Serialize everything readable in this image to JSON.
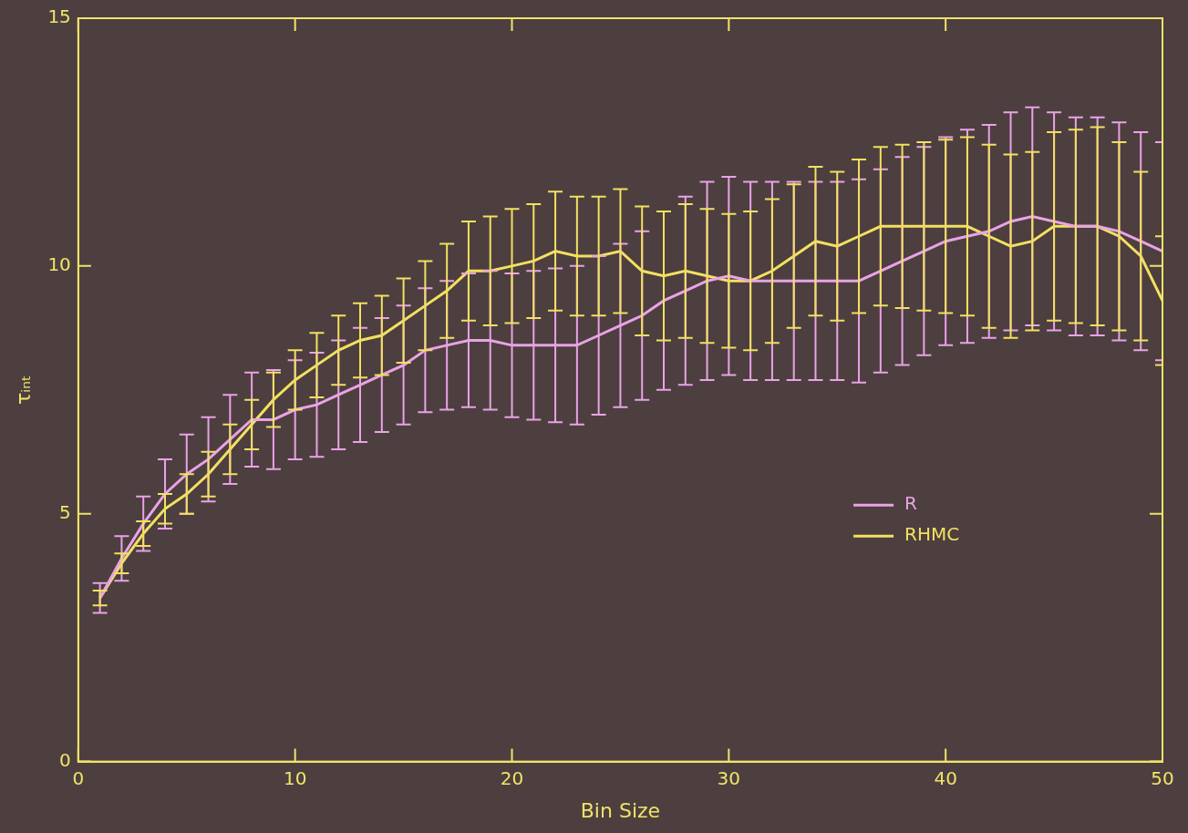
{
  "chart_data": {
    "type": "line",
    "x_label": "Bin Size",
    "y_label": "τᵢₙₜ",
    "x": [
      1,
      2,
      3,
      4,
      5,
      6,
      7,
      8,
      9,
      10,
      11,
      12,
      13,
      14,
      15,
      16,
      17,
      18,
      19,
      20,
      21,
      22,
      23,
      24,
      25,
      26,
      27,
      28,
      29,
      30,
      31,
      32,
      33,
      34,
      35,
      36,
      37,
      38,
      39,
      40,
      41,
      42,
      43,
      44,
      45,
      46,
      47,
      48,
      49,
      50
    ],
    "xlim": [
      0,
      50
    ],
    "xticks": [
      0,
      10,
      20,
      30,
      40,
      50
    ],
    "ylim": [
      0,
      15
    ],
    "yticks": [
      0,
      5,
      10,
      15
    ],
    "grid": false,
    "legend": "lower right",
    "series": [
      {
        "name": "R",
        "color": "#e9a3e6",
        "values": [
          3.3,
          4.1,
          4.8,
          5.4,
          5.8,
          6.1,
          6.5,
          6.9,
          6.9,
          7.1,
          7.2,
          7.4,
          7.6,
          7.8,
          8.0,
          8.3,
          8.4,
          8.5,
          8.5,
          8.4,
          8.4,
          8.4,
          8.4,
          8.6,
          8.8,
          9.0,
          9.3,
          9.5,
          9.7,
          9.8,
          9.7,
          9.7,
          9.7,
          9.7,
          9.7,
          9.7,
          9.9,
          10.1,
          10.3,
          10.5,
          10.6,
          10.7,
          10.9,
          11.0,
          10.9,
          10.8,
          10.8,
          10.7,
          10.5,
          10.3
        ],
        "errors": [
          0.3,
          0.45,
          0.55,
          0.7,
          0.8,
          0.85,
          0.9,
          0.95,
          1.0,
          1.0,
          1.05,
          1.1,
          1.15,
          1.15,
          1.2,
          1.25,
          1.3,
          1.35,
          1.4,
          1.45,
          1.5,
          1.55,
          1.6,
          1.6,
          1.65,
          1.7,
          1.8,
          1.9,
          2.0,
          2.0,
          2.0,
          2.0,
          2.0,
          2.0,
          2.0,
          2.05,
          2.05,
          2.1,
          2.1,
          2.1,
          2.15,
          2.15,
          2.2,
          2.2,
          2.2,
          2.2,
          2.2,
          2.2,
          2.2,
          2.2
        ]
      },
      {
        "name": "RHMC",
        "color": "#f2e160",
        "values": [
          3.3,
          4.0,
          4.6,
          5.1,
          5.4,
          5.8,
          6.3,
          6.8,
          7.3,
          7.7,
          8.0,
          8.3,
          8.5,
          8.6,
          8.9,
          9.2,
          9.5,
          9.9,
          9.9,
          10.0,
          10.1,
          10.3,
          10.2,
          10.2,
          10.3,
          9.9,
          9.8,
          9.9,
          9.8,
          9.7,
          9.7,
          9.9,
          10.2,
          10.5,
          10.4,
          10.6,
          10.8,
          10.8,
          10.8,
          10.8,
          10.8,
          10.6,
          10.4,
          10.5,
          10.8,
          10.8,
          10.8,
          10.6,
          10.2,
          9.3
        ],
        "errors": [
          0.15,
          0.2,
          0.25,
          0.3,
          0.4,
          0.45,
          0.5,
          0.5,
          0.55,
          0.6,
          0.65,
          0.7,
          0.75,
          0.8,
          0.85,
          0.9,
          0.95,
          1.0,
          1.1,
          1.15,
          1.15,
          1.2,
          1.2,
          1.2,
          1.25,
          1.3,
          1.3,
          1.35,
          1.35,
          1.35,
          1.4,
          1.45,
          1.45,
          1.5,
          1.5,
          1.55,
          1.6,
          1.65,
          1.7,
          1.75,
          1.8,
          1.85,
          1.85,
          1.8,
          1.9,
          1.95,
          2.0,
          1.9,
          1.7,
          1.3
        ]
      }
    ]
  }
}
